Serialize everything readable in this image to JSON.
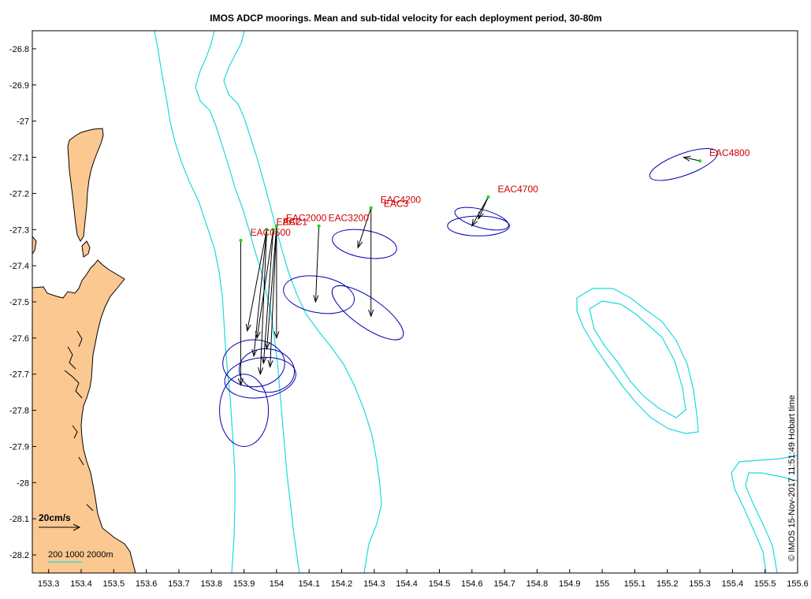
{
  "title": "IMOS ADCP moorings. Mean and sub-tidal velocity for each deployment period, 30-80m",
  "credit": "© IMOS 15-Nov-2017 11:51:49 Hobart time",
  "scale_arrow": {
    "label": "20cm/s",
    "speed_cms": 20
  },
  "isobath_legend": "200 1000 2000m",
  "colors": {
    "land": "#fcc891",
    "isobath": "#19dbe0",
    "ellipse": "#0000b0",
    "mean_vector": "#000000",
    "marker": "#00e000",
    "label": "#d00000"
  },
  "chart_data": {
    "type": "map",
    "title": "IMOS ADCP moorings. Mean and sub-tidal velocity for each deployment period, 30-80m",
    "x_range": [
      153.25,
      155.6
    ],
    "y_range": [
      -28.25,
      -26.75
    ],
    "x_ticks": [
      "153.3",
      "153.4",
      "153.5",
      "153.6",
      "153.7",
      "153.8",
      "153.9",
      "154",
      "154.1",
      "154.2",
      "154.3",
      "154.4",
      "154.5",
      "154.6",
      "154.7",
      "154.8",
      "154.9",
      "155",
      "155.1",
      "155.2",
      "155.3",
      "155.4",
      "155.5",
      "155.6"
    ],
    "y_ticks": [
      "-26.8",
      "-26.9",
      "-27",
      "-27.1",
      "-27.2",
      "-27.3",
      "-27.4",
      "-27.5",
      "-27.6",
      "-27.7",
      "-27.8",
      "-27.9",
      "-28",
      "-28.1",
      "-28.2"
    ],
    "moorings": [
      {
        "name": "EAC0500",
        "lon": 153.89,
        "lat": -27.33,
        "vectors": [
          [
            153.89,
            -27.73
          ]
        ],
        "ellipses": [
          {
            "lon": 153.9,
            "lat": -27.8,
            "rx": 0.075,
            "ry": 0.4,
            "rot": 0
          }
        ]
      },
      {
        "name": "EAC2",
        "lon": 153.97,
        "lat": -27.3,
        "vectors": [
          [
            153.91,
            -27.58
          ],
          [
            153.95,
            -27.7
          ],
          [
            153.93,
            -27.65
          ]
        ],
        "ellipses": [
          {
            "lon": 153.93,
            "lat": -27.67,
            "rx": 0.095,
            "ry": 0.26,
            "rot": 0
          }
        ]
      },
      {
        "name": "EAC1",
        "lon": 153.99,
        "lat": -27.3,
        "vectors": [
          [
            153.96,
            -27.67
          ],
          [
            153.94,
            -27.6
          ]
        ],
        "ellipses": [
          {
            "lon": 153.95,
            "lat": -27.71,
            "rx": 0.11,
            "ry": 0.22,
            "rot": -8
          }
        ]
      },
      {
        "name": "EAC2000",
        "lon": 154.0,
        "lat": -27.29,
        "vectors": [
          [
            153.98,
            -27.68
          ],
          [
            154.0,
            -27.6
          ],
          [
            153.97,
            -27.63
          ]
        ],
        "ellipses": [
          {
            "lon": 153.97,
            "lat": -27.69,
            "rx": 0.085,
            "ry": 0.24,
            "rot": 5
          }
        ]
      },
      {
        "name": "EAC3200",
        "lon": 154.13,
        "lat": -27.29,
        "vectors": [
          [
            154.12,
            -27.5
          ]
        ],
        "ellipses": [
          {
            "lon": 154.13,
            "lat": -27.48,
            "rx": 0.11,
            "ry": 0.2,
            "rot": 10
          }
        ]
      },
      {
        "name": "EAC4200",
        "lon": 154.29,
        "lat": -27.24,
        "vectors": [
          [
            154.25,
            -27.35
          ],
          [
            154.29,
            -27.54
          ]
        ],
        "ellipses": [
          {
            "lon": 154.28,
            "lat": -27.53,
            "rx": 0.13,
            "ry": 0.16,
            "rot": 35
          },
          {
            "lon": 154.27,
            "lat": -27.34,
            "rx": 0.1,
            "ry": 0.15,
            "rot": 10
          }
        ]
      },
      {
        "name": "EAC3",
        "lon": 154.3,
        "lat": -27.25,
        "vectors": [],
        "ellipses": []
      },
      {
        "name": "EAC4700",
        "lon": 154.65,
        "lat": -27.21,
        "vectors": [
          [
            154.6,
            -27.29
          ],
          [
            154.62,
            -27.27
          ]
        ],
        "ellipses": [
          {
            "lon": 154.62,
            "lat": -27.29,
            "rx": 0.095,
            "ry": 0.11,
            "rot": 0
          },
          {
            "lon": 154.63,
            "lat": -27.27,
            "rx": 0.085,
            "ry": 0.1,
            "rot": 15
          }
        ]
      },
      {
        "name": "EAC4800",
        "lon": 155.3,
        "lat": -27.11,
        "vectors": [
          [
            155.25,
            -27.1
          ]
        ],
        "ellipses": [
          {
            "lon": 155.25,
            "lat": -27.12,
            "rx": 0.11,
            "ry": 0.12,
            "rot": -20
          }
        ]
      }
    ]
  }
}
